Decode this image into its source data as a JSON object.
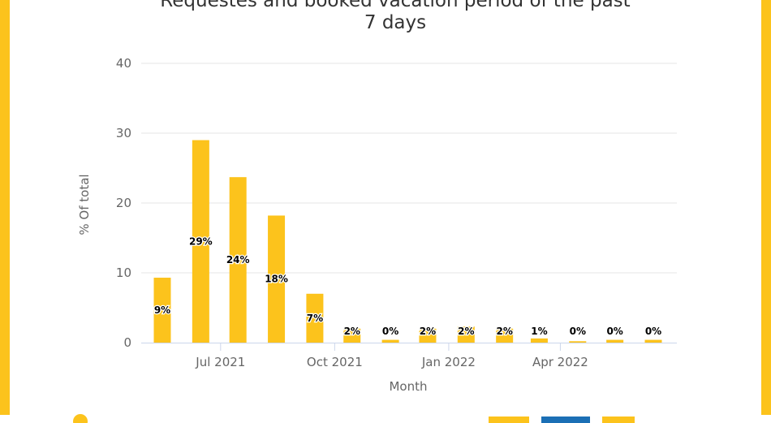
{
  "chart_data": {
    "type": "bar",
    "title_line1": "Requestes and booked vacation period of the past",
    "title_line2": "7 days",
    "xlabel": "Month",
    "ylabel": "% Of total",
    "ylim": [
      0,
      40
    ],
    "yticks": [
      0,
      10,
      20,
      30,
      40
    ],
    "bar_color": "#fcc31c",
    "grid": true,
    "x_tick_labels": [
      {
        "label": "Jul 2021",
        "at": "2021-07-01"
      },
      {
        "label": "Oct 2021",
        "at": "2021-10-01"
      },
      {
        "label": "Jan 2022",
        "at": "2022-01-01"
      },
      {
        "label": "Apr 2022",
        "at": "2022-04-01"
      }
    ],
    "series": [
      {
        "points": [
          {
            "x": "2021-05",
            "y": 9.3,
            "label": "9%"
          },
          {
            "x": "2021-06",
            "y": 29.0,
            "label": "29%"
          },
          {
            "x": "2021-07",
            "y": 23.7,
            "label": "24%"
          },
          {
            "x": "2021-08",
            "y": 18.2,
            "label": "18%"
          },
          {
            "x": "2021-09",
            "y": 7.0,
            "label": "7%"
          },
          {
            "x": "2021-10",
            "y": 2.0,
            "label": "2%"
          },
          {
            "x": "2021-11",
            "y": 0.4,
            "label": "0%"
          },
          {
            "x": "2021-12",
            "y": 2.0,
            "label": "2%"
          },
          {
            "x": "2022-01",
            "y": 2.3,
            "label": "2%"
          },
          {
            "x": "2022-02",
            "y": 2.0,
            "label": "2%"
          },
          {
            "x": "2022-03",
            "y": 0.6,
            "label": "1%"
          },
          {
            "x": "2022-04",
            "y": 0.2,
            "label": "0%"
          },
          {
            "x": "2022-05",
            "y": 0.4,
            "label": "0%"
          },
          {
            "x": "2022-06",
            "y": 0.4,
            "label": "0%"
          }
        ]
      }
    ]
  }
}
